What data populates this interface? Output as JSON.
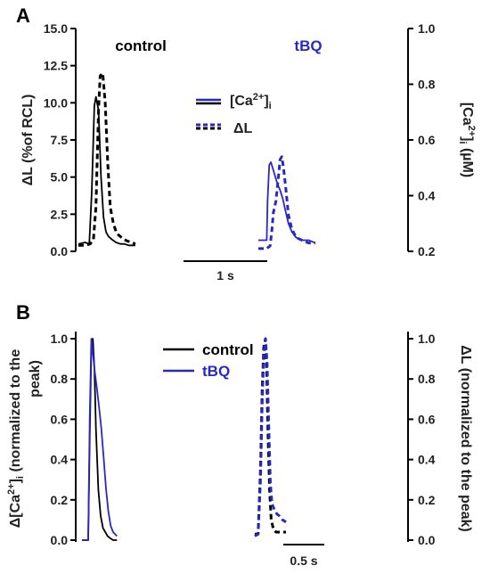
{
  "figure": {
    "panel_a": {
      "label": "A"
    },
    "panel_b": {
      "label": "B"
    }
  },
  "chart_data": [
    {
      "panel": "A",
      "type": "line",
      "ylabel_left": "ΔL (%of RCL)",
      "ylabel_right_parts": {
        "pre": "[Ca",
        "sup": "2+",
        "post": "]",
        "sub": "i",
        "unit": " (µM)"
      },
      "ylim_left": [
        0,
        15
      ],
      "ylim_right": [
        0.2,
        1.0
      ],
      "yticks_left": [
        "0.0",
        "2.5",
        "5.0",
        "7.5",
        "10.0",
        "12.5",
        "15.0"
      ],
      "yticks_right": [
        "0.2",
        "0.4",
        "0.6",
        "0.8",
        "1.0"
      ],
      "scale_bar": "1 s",
      "groups": [
        {
          "label": "control",
          "color": "#000000"
        },
        {
          "label": "tBQ",
          "color": "#2828c8"
        }
      ],
      "legend": [
        {
          "label_parts": {
            "pre": "[Ca",
            "sup": "2+",
            "post": "]",
            "sub": "i"
          },
          "style": "solid"
        },
        {
          "label": "ΔL",
          "style": "dashed"
        }
      ],
      "series": [
        {
          "group": "control",
          "style": "solid",
          "axis": "left",
          "t_ms": [
            0,
            80,
            130,
            160,
            190,
            210,
            240,
            270,
            300,
            330,
            360,
            400,
            450,
            500,
            550,
            600,
            680
          ],
          "values": [
            0.5,
            0.6,
            0.5,
            4.0,
            9.8,
            10.4,
            9.5,
            5.0,
            2.3,
            1.3,
            1.0,
            0.8,
            0.6,
            0.5,
            0.5,
            0.4,
            0.4
          ]
        },
        {
          "group": "control",
          "style": "dashed",
          "axis": "left",
          "t_ms": [
            0,
            80,
            140,
            180,
            210,
            240,
            260,
            290,
            320,
            350,
            380,
            420,
            460,
            520,
            580,
            640,
            680
          ],
          "values": [
            0.4,
            0.4,
            0.5,
            0.8,
            3.0,
            9.5,
            11.8,
            12.0,
            10.0,
            6.0,
            3.0,
            1.8,
            1.2,
            0.9,
            0.7,
            0.6,
            0.5
          ]
        },
        {
          "group": "tBQ",
          "style": "solid",
          "axis": "right",
          "t_ms": [
            0,
            100,
            110,
            130,
            150,
            170,
            200,
            230,
            260,
            290,
            320,
            360,
            400,
            450,
            520,
            600,
            680
          ],
          "values": [
            0.24,
            0.24,
            0.38,
            0.51,
            0.52,
            0.5,
            0.47,
            0.44,
            0.42,
            0.39,
            0.35,
            0.3,
            0.27,
            0.25,
            0.24,
            0.24,
            0.23
          ]
        },
        {
          "group": "tBQ",
          "style": "dashed",
          "axis": "right",
          "t_ms": [
            0,
            100,
            140,
            160,
            180,
            210,
            240,
            260,
            280,
            300,
            330,
            360,
            400,
            450,
            520,
            600,
            680
          ],
          "values": [
            0.21,
            0.21,
            0.22,
            0.27,
            0.34,
            0.38,
            0.47,
            0.53,
            0.54,
            0.5,
            0.42,
            0.33,
            0.28,
            0.25,
            0.24,
            0.23,
            0.23
          ]
        }
      ]
    },
    {
      "panel": "B",
      "type": "line",
      "ylabel_left_parts": {
        "pre": "Δ[Ca",
        "sup": "2+",
        "post": "]",
        "sub": "i",
        "rest": " (normalized to the",
        "line2": "peak)"
      },
      "ylabel_right": "ΔL (normalized to the peak)",
      "ylim": [
        0,
        1.0
      ],
      "yticks": [
        "0.0",
        "0.2",
        "0.4",
        "0.6",
        "0.8",
        "1.0"
      ],
      "scale_bar": "0.5 s",
      "legend": [
        {
          "label": "control",
          "color": "#000000"
        },
        {
          "label": "tBQ",
          "color": "#2828c8"
        }
      ],
      "left_series": [
        {
          "group": "control",
          "style": "solid",
          "t_ms": [
            0,
            80,
            100,
            120,
            140,
            160,
            180,
            210,
            240,
            270,
            300,
            330,
            360,
            400,
            450
          ],
          "values": [
            0.0,
            0.0,
            0.5,
            0.95,
            1.0,
            0.85,
            0.55,
            0.25,
            0.12,
            0.06,
            0.04,
            0.02,
            0.01,
            0.0,
            0.0
          ]
        },
        {
          "group": "tBQ",
          "style": "solid",
          "t_ms": [
            0,
            80,
            100,
            120,
            140,
            160,
            190,
            220,
            250,
            280,
            310,
            340,
            370,
            400,
            450
          ],
          "values": [
            0.0,
            0.0,
            0.6,
            1.0,
            0.93,
            0.85,
            0.76,
            0.66,
            0.55,
            0.4,
            0.25,
            0.14,
            0.07,
            0.04,
            0.02
          ]
        }
      ],
      "right_series": [
        {
          "group": "control",
          "style": "dashed",
          "t_ms": [
            0,
            40,
            70,
            90,
            110,
            130,
            145,
            160,
            180,
            200,
            230,
            260,
            300,
            340,
            380
          ],
          "values": [
            0.03,
            0.03,
            0.35,
            0.75,
            0.96,
            1.0,
            0.85,
            0.55,
            0.25,
            0.1,
            0.05,
            0.04,
            0.04,
            0.04,
            0.04
          ]
        },
        {
          "group": "tBQ",
          "style": "dashed",
          "t_ms": [
            0,
            40,
            70,
            90,
            110,
            130,
            150,
            170,
            190,
            210,
            240,
            270,
            300,
            340,
            380
          ],
          "values": [
            0.02,
            0.03,
            0.3,
            0.68,
            0.92,
            1.0,
            0.88,
            0.58,
            0.28,
            0.18,
            0.15,
            0.13,
            0.12,
            0.1,
            0.09
          ]
        }
      ]
    }
  ]
}
